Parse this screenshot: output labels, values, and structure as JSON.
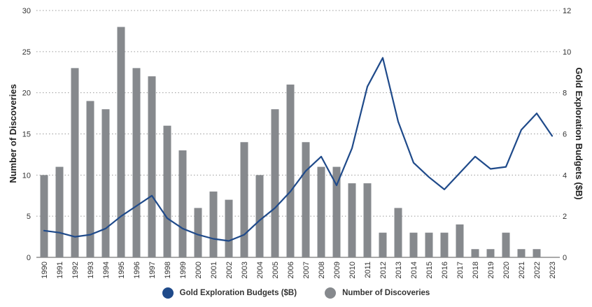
{
  "chart_data": {
    "type": "bar",
    "categories": [
      "1990",
      "1991",
      "1992",
      "1993",
      "1994",
      "1995",
      "1996",
      "1997",
      "1998",
      "1999",
      "2000",
      "2001",
      "2002",
      "2003",
      "2004",
      "2005",
      "2006",
      "2007",
      "2008",
      "2009",
      "2010",
      "2011",
      "2012",
      "2013",
      "2014",
      "2015",
      "2016",
      "2017",
      "2018",
      "2019",
      "2020",
      "2021",
      "2022",
      "2023"
    ],
    "series": [
      {
        "name": "Number of Discoveries",
        "type": "bar",
        "axis": "left",
        "color": "#86898d",
        "values": [
          10,
          11,
          23,
          19,
          18,
          28,
          23,
          22,
          16,
          13,
          6,
          8,
          7,
          14,
          10,
          18,
          21,
          14,
          11,
          11,
          9,
          9,
          3,
          6,
          3,
          3,
          3,
          4,
          1,
          1,
          3,
          1,
          1,
          null
        ]
      },
      {
        "name": "Gold Exploration Budgets ($B)",
        "type": "line",
        "axis": "right",
        "color": "#1f4a8a",
        "values": [
          1.3,
          1.2,
          1.0,
          1.1,
          1.4,
          2.0,
          2.5,
          3.0,
          1.9,
          1.4,
          1.1,
          0.9,
          0.8,
          1.1,
          1.8,
          2.4,
          3.2,
          4.2,
          4.9,
          3.5,
          5.3,
          8.3,
          9.7,
          6.6,
          4.6,
          3.9,
          3.3,
          4.1,
          4.9,
          4.3,
          4.4,
          6.2,
          7.0,
          5.9
        ]
      }
    ],
    "ylabel": "Number of Discoveries",
    "y2label": "Gold Exploration Budgets ($B)",
    "ylim": [
      0,
      30
    ],
    "y2lim": [
      0,
      12
    ],
    "yticks": [
      "0",
      "5",
      "10",
      "15",
      "20",
      "25",
      "30"
    ],
    "y2ticks": [
      "0",
      "2",
      "4",
      "6",
      "8",
      "10",
      "12"
    ],
    "grid": "horizontal dotted",
    "legend": "bottom",
    "legend_entries": [
      "Gold Exploration Budgets ($B)",
      "Number of Discoveries"
    ]
  }
}
